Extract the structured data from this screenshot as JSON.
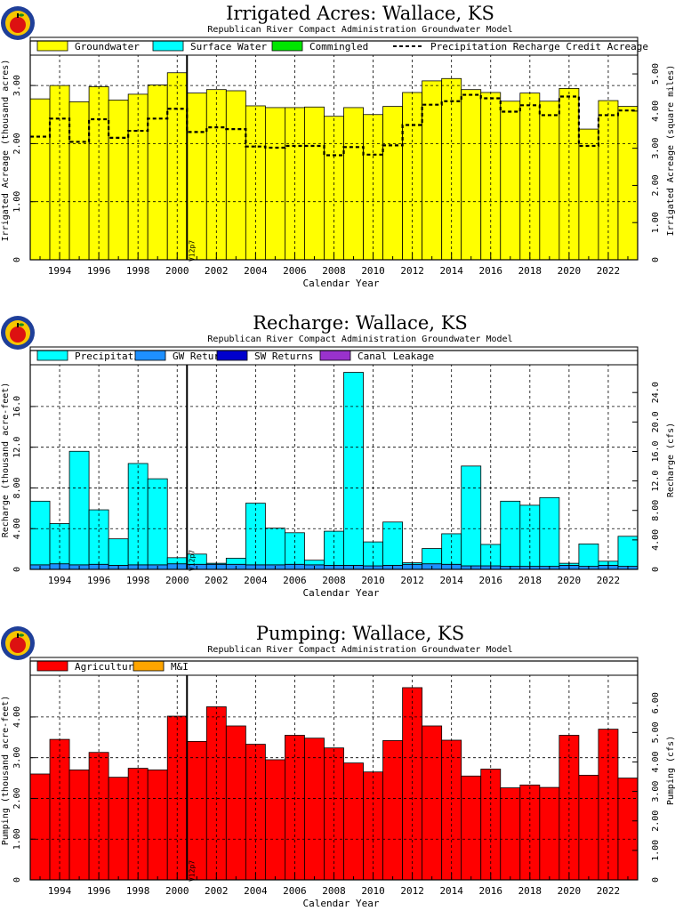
{
  "colors": {
    "groundwater": "#ffff00",
    "surface_water": "#00ffff",
    "commingled": "#00e600",
    "precipitation": "#00ffff",
    "gw_returns": "#1e90ff",
    "sw_returns": "#0000cd",
    "canal_leakage": "#9932cc",
    "agricultural": "#ff0000",
    "mi": "#ffa500",
    "logo_ring": "#1f3f99",
    "logo_gold": "#f7c600",
    "apple_red": "#dd1111"
  },
  "logo": {
    "icon": "apple-logo"
  },
  "marker_label": "V12p7",
  "chart_data": [
    {
      "type": "bar",
      "title": "Irrigated  Acres:  Wallace,  KS",
      "subtitle": "Republican River Compact Administration Groundwater Model",
      "xlabel": "Calendar Year",
      "ylabel": "Irrigated Acreage (thousand acres)",
      "ylabel_right": "Irrigated Acreage (square miles)",
      "xlim": [
        1992.5,
        2023.5
      ],
      "ylim": [
        0,
        3.4
      ],
      "ylim_right": [
        0,
        5.3125
      ],
      "x_ticks": [
        "1994",
        "1996",
        "1998",
        "2000",
        "2002",
        "2004",
        "2006",
        "2008",
        "2010",
        "2012",
        "2014",
        "2016",
        "2018",
        "2020",
        "2022"
      ],
      "y_ticks": [
        "0",
        "1.00",
        "2.00",
        "3.00"
      ],
      "y_ticks_right": [
        "0",
        "1.00",
        "2.00",
        "3.00",
        "4.00",
        "5.00"
      ],
      "grid": true,
      "legend_position": "top",
      "legend": [
        "Groundwater",
        "Surface Water",
        "Commingled",
        "Precipitation Recharge Credit Acreage"
      ],
      "marker_year": 2000.5,
      "years": [
        1993,
        1994,
        1995,
        1996,
        1997,
        1998,
        1999,
        2000,
        2001,
        2002,
        2003,
        2004,
        2005,
        2006,
        2007,
        2008,
        2009,
        2010,
        2011,
        2012,
        2013,
        2014,
        2015,
        2016,
        2017,
        2018,
        2019,
        2020,
        2021,
        2022,
        2023
      ],
      "series": [
        {
          "name": "Groundwater",
          "values": [
            2.77,
            3.0,
            2.72,
            2.98,
            2.75,
            2.85,
            3.01,
            3.22,
            2.87,
            2.93,
            2.91,
            2.65,
            2.62,
            2.62,
            2.63,
            2.47,
            2.62,
            2.5,
            2.64,
            2.88,
            3.08,
            3.12,
            2.93,
            2.88,
            2.73,
            2.87,
            2.73,
            2.95,
            2.25,
            2.74,
            2.64
          ]
        },
        {
          "name": "Surface Water",
          "values": [
            0,
            0,
            0,
            0,
            0,
            0,
            0,
            0,
            0,
            0,
            0,
            0,
            0,
            0,
            0,
            0,
            0,
            0,
            0,
            0,
            0,
            0,
            0,
            0,
            0,
            0,
            0,
            0,
            0,
            0,
            0
          ]
        },
        {
          "name": "Commingled",
          "values": [
            0,
            0,
            0,
            0,
            0,
            0,
            0,
            0,
            0,
            0,
            0,
            0,
            0,
            0,
            0,
            0,
            0,
            0,
            0,
            0,
            0,
            0,
            0,
            0,
            0,
            0,
            0,
            0,
            0,
            0,
            0
          ]
        },
        {
          "name": "Precipitation Recharge Credit Acreage",
          "style": "dashed-step",
          "values": [
            2.12,
            2.43,
            2.03,
            2.42,
            2.1,
            2.22,
            2.43,
            2.6,
            2.2,
            2.28,
            2.25,
            1.95,
            1.93,
            1.96,
            1.96,
            1.8,
            1.94,
            1.81,
            1.97,
            2.32,
            2.67,
            2.73,
            2.84,
            2.78,
            2.55,
            2.66,
            2.49,
            2.81,
            1.96,
            2.49,
            2.57
          ]
        }
      ]
    },
    {
      "type": "bar",
      "title": "Recharge:  Wallace,  KS",
      "subtitle": "Republican River Compact Administration Groundwater Model",
      "xlabel": "Calendar Year",
      "ylabel": "Recharge (thousand acre-feet)",
      "ylabel_right": "Recharge (cfs)",
      "xlim": [
        1992.5,
        2023.5
      ],
      "ylim": [
        0,
        19.4
      ],
      "ylim_right": [
        0,
        26.8
      ],
      "x_ticks": [
        "1994",
        "1996",
        "1998",
        "2000",
        "2002",
        "2004",
        "2006",
        "2008",
        "2010",
        "2012",
        "2014",
        "2016",
        "2018",
        "2020",
        "2022"
      ],
      "y_ticks": [
        "0",
        "4.00",
        "8.00",
        "12.0",
        "16.0"
      ],
      "y_ticks_right": [
        "0",
        "4.00",
        "8.00",
        "12.0",
        "16.0",
        "20.0",
        "24.0"
      ],
      "grid": true,
      "legend_position": "top",
      "legend": [
        "Precipitation",
        "GW Returns",
        "SW Returns",
        "Canal Leakage"
      ],
      "marker_year": 2000.5,
      "years": [
        1993,
        1994,
        1995,
        1996,
        1997,
        1998,
        1999,
        2000,
        2001,
        2002,
        2003,
        2004,
        2005,
        2006,
        2007,
        2008,
        2009,
        2010,
        2011,
        2012,
        2013,
        2014,
        2015,
        2016,
        2017,
        2018,
        2019,
        2020,
        2021,
        2022,
        2023
      ],
      "series": [
        {
          "name": "GW Returns",
          "values": [
            0.45,
            0.55,
            0.45,
            0.5,
            0.4,
            0.45,
            0.45,
            0.55,
            0.5,
            0.5,
            0.5,
            0.45,
            0.45,
            0.5,
            0.45,
            0.4,
            0.4,
            0.35,
            0.4,
            0.5,
            0.55,
            0.5,
            0.35,
            0.35,
            0.3,
            0.3,
            0.3,
            0.4,
            0.3,
            0.4,
            0.3
          ]
        },
        {
          "name": "Precipitation",
          "values": [
            6.25,
            3.95,
            11.15,
            5.35,
            2.6,
            9.95,
            8.45,
            0.6,
            1.0,
            0.1,
            0.6,
            6.05,
            3.6,
            3.1,
            0.45,
            3.35,
            18.95,
            2.35,
            4.25,
            0.15,
            1.5,
            3.0,
            9.8,
            2.1,
            6.4,
            6.0,
            6.75,
            0.2,
            2.2,
            0.4,
            2.95
          ]
        },
        {
          "name": "SW Returns",
          "values": [
            0,
            0,
            0,
            0,
            0,
            0,
            0,
            0,
            0,
            0,
            0,
            0,
            0,
            0,
            0,
            0,
            0,
            0,
            0,
            0,
            0,
            0,
            0,
            0,
            0,
            0,
            0,
            0,
            0,
            0,
            0
          ]
        },
        {
          "name": "Canal Leakage",
          "values": [
            0,
            0,
            0,
            0,
            0,
            0,
            0,
            0,
            0,
            0,
            0,
            0,
            0,
            0,
            0,
            0,
            0,
            0,
            0,
            0,
            0,
            0,
            0,
            0,
            0,
            0,
            0,
            0,
            0,
            0,
            0
          ]
        }
      ]
    },
    {
      "type": "bar",
      "title": "Pumping:  Wallace,  KS",
      "subtitle": "Republican River Compact Administration Groundwater Model",
      "xlabel": "Calendar Year",
      "ylabel": "Pumping (thousand acre-feet)",
      "ylabel_right": "Pumping (cfs)",
      "xlim": [
        1992.5,
        2023.5
      ],
      "ylim": [
        0,
        4.85
      ],
      "ylim_right": [
        0,
        6.7
      ],
      "x_ticks": [
        "1994",
        "1996",
        "1998",
        "2000",
        "2002",
        "2004",
        "2006",
        "2008",
        "2010",
        "2012",
        "2014",
        "2016",
        "2018",
        "2020",
        "2022"
      ],
      "y_ticks": [
        "0",
        "1.00",
        "2.00",
        "3.00",
        "4.00"
      ],
      "y_ticks_right": [
        "0",
        "1.00",
        "2.00",
        "3.00",
        "4.00",
        "5.00",
        "6.00"
      ],
      "grid": true,
      "legend_position": "top",
      "legend": [
        "Agricultural",
        "M&I"
      ],
      "marker_year": 2000.5,
      "years": [
        1993,
        1994,
        1995,
        1996,
        1997,
        1998,
        1999,
        2000,
        2001,
        2002,
        2003,
        2004,
        2005,
        2006,
        2007,
        2008,
        2009,
        2010,
        2011,
        2012,
        2013,
        2014,
        2015,
        2016,
        2017,
        2018,
        2019,
        2020,
        2021,
        2022,
        2023
      ],
      "series": [
        {
          "name": "Agricultural",
          "values": [
            2.6,
            3.45,
            2.7,
            3.13,
            2.52,
            2.74,
            2.7,
            4.02,
            3.4,
            4.25,
            3.78,
            3.33,
            2.95,
            3.55,
            3.48,
            3.24,
            2.87,
            2.65,
            3.42,
            4.72,
            3.78,
            3.43,
            2.55,
            2.72,
            2.26,
            2.33,
            2.27,
            3.55,
            2.57,
            3.7,
            2.5
          ]
        },
        {
          "name": "M&I",
          "values": [
            0,
            0,
            0,
            0,
            0,
            0,
            0,
            0,
            0,
            0,
            0,
            0,
            0,
            0,
            0,
            0,
            0,
            0,
            0,
            0,
            0,
            0,
            0,
            0,
            0,
            0,
            0,
            0,
            0,
            0,
            0
          ]
        }
      ]
    }
  ]
}
